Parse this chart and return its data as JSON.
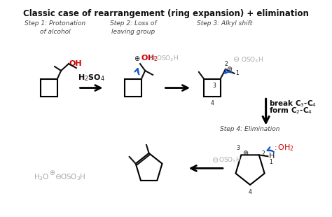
{
  "title": "Classic case of rearrangement (ring expansion) + elimination",
  "title_fontsize": 8.5,
  "title_fontweight": "bold",
  "bg_color": "#ffffff",
  "step1_label": "Step 1: Protonation\nof alcohol",
  "step2_label": "Step 2: Loss of\nleaving group",
  "step3_label": "Step 3: Alkyl shift",
  "step4_label": "Step 4: Elimination",
  "h2so4_label": "H$_2$SO$_4$",
  "break_form_1": "break C$_3$-C$_4$",
  "break_form_2": "form C$_2$-C$_4$",
  "oh_label": "OH",
  "oh2_label": "OH$_2$",
  "h3o_label": "H$_3$O",
  "water_label": ":$\\,$OH$_2$",
  "gray": "#aaaaaa",
  "red": "#cc0000",
  "blue": "#1155cc",
  "black": "#111111",
  "figw": 4.74,
  "figh": 3.1,
  "dpi": 100
}
